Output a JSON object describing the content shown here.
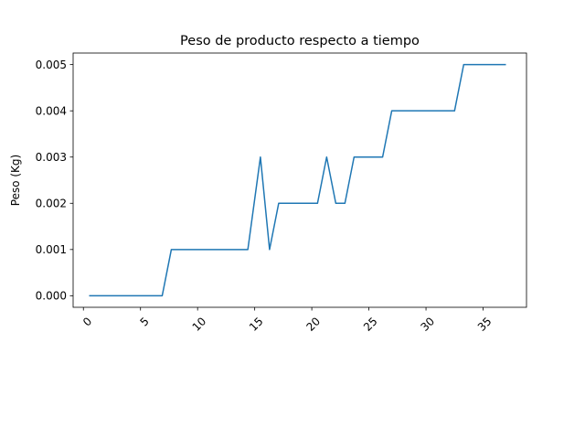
{
  "chart_data": {
    "type": "line",
    "title": "Peso de producto respecto a tiempo",
    "xlabel": "",
    "ylabel": "Peso (Kg)",
    "xlim": [
      -0.9,
      38.8
    ],
    "ylim": [
      -0.00025,
      0.00525
    ],
    "xticks": [
      0,
      5,
      10,
      15,
      20,
      25,
      30,
      35
    ],
    "xtick_labels": [
      "0",
      "5",
      "10",
      "15",
      "20",
      "25",
      "30",
      "35"
    ],
    "xtick_rotation": 45,
    "yticks": [
      0.0,
      0.001,
      0.002,
      0.003,
      0.004,
      0.005
    ],
    "ytick_labels": [
      "0.000",
      "0.001",
      "0.002",
      "0.003",
      "0.004",
      "0.005"
    ],
    "grid": false,
    "series": [
      {
        "color": "#1f77b4",
        "x": [
          0.5,
          6.9,
          7.7,
          14.4,
          15.5,
          16.3,
          17.1,
          20.5,
          21.3,
          22.1,
          22.9,
          23.7,
          26.2,
          27.0,
          32.5,
          33.3,
          37.0
        ],
        "y": [
          0.0,
          0.0,
          0.001,
          0.001,
          0.003,
          0.001,
          0.002,
          0.002,
          0.003,
          0.002,
          0.002,
          0.003,
          0.003,
          0.004,
          0.004,
          0.005,
          0.005
        ]
      }
    ]
  }
}
